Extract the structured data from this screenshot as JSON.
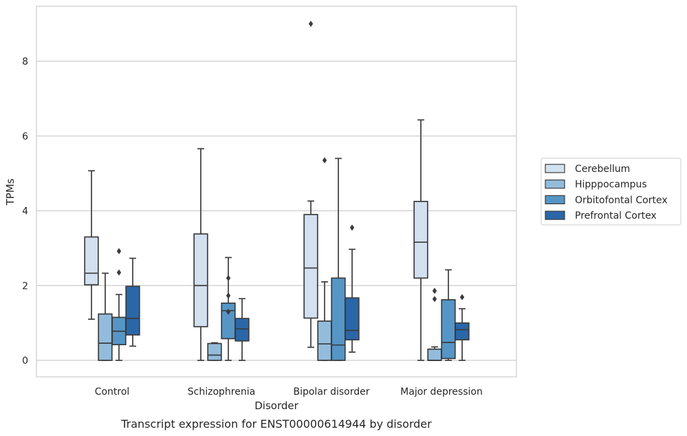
{
  "caption": "Transcript expression for ENST00000614944 by disorder",
  "chart_data": {
    "type": "box",
    "xlabel": "Disorder",
    "ylabel": "TPMs",
    "ylim": [
      -0.44,
      9.65
    ],
    "yticks": [
      0,
      2,
      4,
      6,
      8
    ],
    "grid": "horizontal",
    "legend_position": "right",
    "categories": [
      "Control",
      "Schizophrenia",
      "Bipolar disorder",
      "Major depression"
    ],
    "series": [
      {
        "name": "Cerebellum",
        "color": "#d2e0f0",
        "boxes": [
          {
            "whislo": 1.1,
            "q1": 2.02,
            "med": 2.33,
            "q3": 3.3,
            "whishi": 5.07,
            "fliers": []
          },
          {
            "whislo": 0.0,
            "q1": 0.9,
            "med": 2.0,
            "q3": 3.38,
            "whishi": 5.66,
            "fliers": []
          },
          {
            "whislo": 0.35,
            "q1": 1.13,
            "med": 2.47,
            "q3": 3.9,
            "whishi": 4.26,
            "fliers": [
              9.0
            ]
          },
          {
            "whislo": 0.0,
            "q1": 2.2,
            "med": 3.16,
            "q3": 4.25,
            "whishi": 6.43,
            "fliers": []
          }
        ]
      },
      {
        "name": "Hipppocampus",
        "color": "#93bcdc",
        "boxes": [
          {
            "whislo": 0.0,
            "q1": 0.0,
            "med": 0.46,
            "q3": 1.24,
            "whishi": 2.33,
            "fliers": []
          },
          {
            "whislo": 0.0,
            "q1": 0.0,
            "med": 0.14,
            "q3": 0.45,
            "whishi": 0.47,
            "fliers": []
          },
          {
            "whislo": 0.0,
            "q1": 0.0,
            "med": 0.44,
            "q3": 1.05,
            "whishi": 2.1,
            "fliers": [
              5.35
            ]
          },
          {
            "whislo": 0.0,
            "q1": 0.0,
            "med": 0.0,
            "q3": 0.3,
            "whishi": 0.36,
            "fliers": [
              1.86,
              1.64
            ]
          }
        ]
      },
      {
        "name": "Orbitofontal Cortex",
        "color": "#5596c6",
        "boxes": [
          {
            "whislo": 0.0,
            "q1": 0.42,
            "med": 0.78,
            "q3": 1.15,
            "whishi": 1.76,
            "fliers": [
              2.92,
              2.35
            ]
          },
          {
            "whislo": 0.0,
            "q1": 0.58,
            "med": 1.33,
            "q3": 1.53,
            "whishi": 2.75,
            "fliers": [
              2.2,
              1.73,
              1.3
            ]
          },
          {
            "whislo": 0.0,
            "q1": 0.0,
            "med": 0.41,
            "q3": 2.2,
            "whishi": 5.4,
            "fliers": []
          },
          {
            "whislo": 0.0,
            "q1": 0.05,
            "med": 0.48,
            "q3": 1.62,
            "whishi": 2.42,
            "fliers": []
          }
        ]
      },
      {
        "name": "Prefrontal Cortex",
        "color": "#2a67a8",
        "boxes": [
          {
            "whislo": 0.38,
            "q1": 0.68,
            "med": 1.12,
            "q3": 1.98,
            "whishi": 2.73,
            "fliers": []
          },
          {
            "whislo": 0.0,
            "q1": 0.52,
            "med": 0.84,
            "q3": 1.12,
            "whishi": 1.65,
            "fliers": []
          },
          {
            "whislo": 0.22,
            "q1": 0.55,
            "med": 0.8,
            "q3": 1.67,
            "whishi": 2.97,
            "fliers": [
              3.55
            ]
          },
          {
            "whislo": 0.0,
            "q1": 0.55,
            "med": 0.82,
            "q3": 1.0,
            "whishi": 1.38,
            "fliers": [
              1.69
            ]
          }
        ]
      }
    ]
  }
}
